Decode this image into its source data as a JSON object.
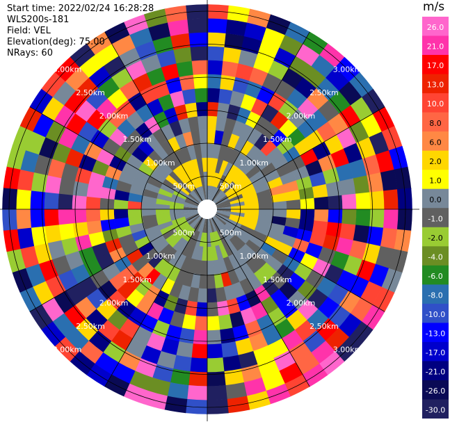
{
  "header": {
    "start_time": "Start time: 2022/02/24 16:28:28",
    "instrument": "WLS200s-181",
    "field": "Field: VEL",
    "elevation": "Elevation(deg): 75.00",
    "nrays": "NRays: 60"
  },
  "colorbar": {
    "unit": "m/s",
    "ticks": [
      "26.0",
      "21.0",
      "17.0",
      "13.0",
      "10.0",
      "8.0",
      "6.0",
      "2.0",
      "1.0",
      "0.0",
      "-1.0",
      "-2.0",
      "-4.0",
      "-6.0",
      "-8.0",
      "-10.0",
      "-13.0",
      "-17.0",
      "-21.0",
      "-26.0",
      "-30.0"
    ],
    "colors": [
      "#ff66cc",
      "#ff33aa",
      "#ff0000",
      "#ee2200",
      "#ff4433",
      "#ff6644",
      "#ff8844",
      "#ffd700",
      "#ffff00",
      "#778899",
      "#606060",
      "#99cc33",
      "#6b8e23",
      "#228b22",
      "#2a6fb0",
      "#3050c8",
      "#0000ff",
      "#0000cc",
      "#000080",
      "#0a0a55",
      "#202060"
    ]
  },
  "chart_data": {
    "type": "heatmap",
    "projection": "polar PPI",
    "field": "VEL",
    "unit": "m/s",
    "n_rays": 60,
    "range_rings_km": [
      0.5,
      1.0,
      1.5,
      2.0,
      2.5,
      3.0
    ],
    "ring_labels": [
      "500m",
      "1.00km",
      "1.50km",
      "2.00km",
      "2.50km",
      "3.00km"
    ],
    "value_range": [
      -30,
      26
    ],
    "gates_per_ray": 14,
    "pattern_note": "inner region (< 1.0 km) near zero velocity (gray), yellow band +1 to +2 m/s toward north/east, olive-green -1 to -2 m/s toward south/west; outer gates noisy spanning full scale"
  }
}
